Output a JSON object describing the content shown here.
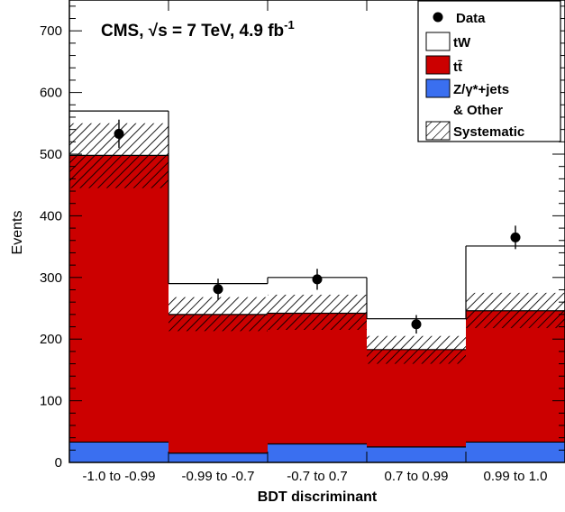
{
  "chart_data": {
    "type": "bar",
    "title": "CMS, √s = 7 TeV, 4.9 fb⁻¹",
    "xlabel": "BDT discriminant",
    "ylabel": "Events",
    "ylim": [
      0,
      750
    ],
    "yticks": [
      0,
      100,
      200,
      300,
      400,
      500,
      600,
      700
    ],
    "grid": false,
    "legend_position": "top-right",
    "categories": [
      "-1.0 to -0.99",
      "-0.99 to -0.7",
      "-0.7 to 0.7",
      "0.7 to 0.99",
      "0.99 to 1.0"
    ],
    "stacked": true,
    "series": [
      {
        "name": "Z/γ*+jets & Other",
        "color": "#3a6ff0",
        "values": [
          33,
          15,
          30,
          25,
          33
        ]
      },
      {
        "name": "tt̄",
        "color": "#cc0000",
        "values": [
          465,
          225,
          212,
          158,
          213
        ]
      },
      {
        "name": "tW",
        "color": "#ffffff",
        "values": [
          72,
          50,
          58,
          50,
          105
        ]
      }
    ],
    "data": {
      "name": "Data",
      "values": [
        533,
        281,
        297,
        224,
        365
      ],
      "errors": [
        23,
        17,
        17,
        15,
        19
      ]
    },
    "systematic": {
      "name": "Systematic",
      "bands": [
        {
          "ttbar": [
            445,
            550
          ],
          "total": [
            445,
            550
          ]
        },
        {
          "ttbar": [
            213,
            268
          ],
          "total": [
            213,
            268
          ]
        },
        {
          "ttbar": [
            215,
            272
          ],
          "total": [
            215,
            272
          ]
        },
        {
          "ttbar": [
            160,
            205
          ],
          "total": [
            160,
            205
          ]
        },
        {
          "ttbar": [
            218,
            275
          ],
          "total": [
            218,
            275
          ]
        }
      ]
    }
  },
  "legend": {
    "data": "Data",
    "tw": "tW",
    "ttbar": "tt̄",
    "zjets_line1": "Z/γ*+jets",
    "zjets_line2": "& Other",
    "systematic": "Systematic"
  },
  "title_parts": {
    "prefix": "CMS, ",
    "sqrt": "√s",
    "middle": " = 7 TeV, 4.9 fb",
    "sup": "-1"
  }
}
